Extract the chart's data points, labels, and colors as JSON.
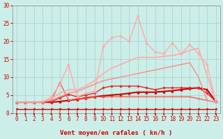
{
  "background_color": "#cceee8",
  "grid_color": "#aacccc",
  "xlabel": "Vent moyen/en rafales ( kn/h )",
  "xlabel_color": "#cc0000",
  "xlabel_fontsize": 6.5,
  "tick_color": "#cc0000",
  "tick_fontsize": 5.5,
  "ylim": [
    0,
    30
  ],
  "xlim": [
    -0.5,
    23.5
  ],
  "yticks": [
    0,
    5,
    10,
    15,
    20,
    25,
    30
  ],
  "xticks": [
    0,
    1,
    2,
    3,
    4,
    5,
    6,
    7,
    8,
    9,
    10,
    11,
    12,
    13,
    14,
    15,
    16,
    17,
    18,
    19,
    20,
    21,
    22,
    23
  ],
  "lines": [
    {
      "x": [
        0,
        1,
        2,
        3,
        4,
        5,
        6,
        7,
        8,
        9,
        10,
        11,
        12,
        13,
        14,
        15,
        16,
        17,
        18,
        19,
        20,
        21,
        22,
        23
      ],
      "y": [
        1,
        1,
        1,
        1,
        1,
        1,
        1,
        1,
        1,
        1,
        1,
        1,
        1,
        1,
        1,
        1,
        1,
        1,
        1,
        1,
        1,
        1,
        1,
        1
      ],
      "color": "#cc0000",
      "lw": 1.0,
      "marker": "v",
      "ms": 2.0
    },
    {
      "x": [
        0,
        1,
        2,
        3,
        4,
        5,
        6,
        7,
        8,
        9,
        10,
        11,
        12,
        13,
        14,
        15,
        16,
        17,
        18,
        19,
        20,
        21,
        22,
        23
      ],
      "y": [
        3,
        3,
        3,
        3,
        3,
        3.2,
        3.5,
        3.8,
        4.2,
        4.5,
        4.8,
        5.0,
        5.2,
        5.5,
        5.8,
        5.8,
        5.8,
        6.0,
        6.2,
        6.5,
        6.8,
        7.0,
        6.5,
        3.2
      ],
      "color": "#cc0000",
      "lw": 1.5,
      "marker": "^",
      "ms": 2.5
    },
    {
      "x": [
        0,
        1,
        2,
        3,
        4,
        5,
        6,
        7,
        8,
        9,
        10,
        11,
        12,
        13,
        14,
        15,
        16,
        17,
        18,
        19,
        20,
        21,
        22,
        23
      ],
      "y": [
        3,
        3,
        3,
        3,
        3.2,
        4.2,
        5.2,
        4.5,
        5.0,
        5.5,
        7.0,
        7.5,
        7.5,
        7.5,
        7.5,
        7.0,
        6.5,
        7.0,
        7.0,
        7.0,
        7.0,
        7.0,
        5.5,
        3.2
      ],
      "color": "#ee2222",
      "lw": 1.0,
      "marker": "D",
      "ms": 1.8
    },
    {
      "x": [
        0,
        1,
        2,
        3,
        4,
        5,
        6,
        7,
        8,
        9,
        10,
        11,
        12,
        13,
        14,
        15,
        16,
        17,
        18,
        19,
        20,
        21,
        22,
        23
      ],
      "y": [
        3,
        3,
        3,
        3,
        3.5,
        8.5,
        3.5,
        4.0,
        4.0,
        4.5,
        4.5,
        4.5,
        4.5,
        4.5,
        4.5,
        4.5,
        4.5,
        4.5,
        4.5,
        4.5,
        4.5,
        4.0,
        3.5,
        3.0
      ],
      "color": "#ff5555",
      "lw": 1.0,
      "marker": "+",
      "ms": 3.0
    },
    {
      "x": [
        0,
        1,
        2,
        3,
        4,
        5,
        6,
        7,
        8,
        9,
        10,
        11,
        12,
        13,
        14,
        15,
        16,
        17,
        18,
        19,
        20,
        21,
        22,
        23
      ],
      "y": [
        3,
        3,
        3,
        3,
        4.5,
        8.0,
        13.5,
        4.5,
        5.5,
        6.0,
        18.5,
        21.0,
        21.5,
        20.0,
        27.0,
        19.5,
        17.0,
        16.5,
        19.5,
        16.5,
        19.0,
        16.5,
        13.5,
        3.0
      ],
      "color": "#ffaaaa",
      "lw": 1.0,
      "marker": "D",
      "ms": 1.8
    },
    {
      "x": [
        0,
        1,
        2,
        3,
        4,
        5,
        6,
        7,
        8,
        9,
        10,
        11,
        12,
        13,
        14,
        15,
        16,
        17,
        18,
        19,
        20,
        21,
        22,
        23
      ],
      "y": [
        3.0,
        3.0,
        3.0,
        3.2,
        4.0,
        5.5,
        6.5,
        6.5,
        7.5,
        9.0,
        11.0,
        12.5,
        13.5,
        14.5,
        15.5,
        15.5,
        15.5,
        15.8,
        16.0,
        16.5,
        17.5,
        18.0,
        10.5,
        3.2
      ],
      "color": "#ffaaaa",
      "lw": 1.2,
      "marker": null,
      "ms": 0
    },
    {
      "x": [
        0,
        1,
        2,
        3,
        4,
        5,
        6,
        7,
        8,
        9,
        10,
        11,
        12,
        13,
        14,
        15,
        16,
        17,
        18,
        19,
        20,
        21,
        22,
        23
      ],
      "y": [
        3.0,
        3.0,
        3.0,
        3.0,
        3.5,
        4.5,
        5.5,
        6.0,
        7.0,
        8.0,
        9.0,
        9.5,
        10.0,
        10.5,
        11.0,
        11.5,
        12.0,
        12.5,
        13.0,
        13.5,
        14.0,
        10.0,
        3.5,
        3.0
      ],
      "color": "#ff8888",
      "lw": 1.0,
      "marker": null,
      "ms": 0
    }
  ],
  "arrow_color": "#cc0000"
}
